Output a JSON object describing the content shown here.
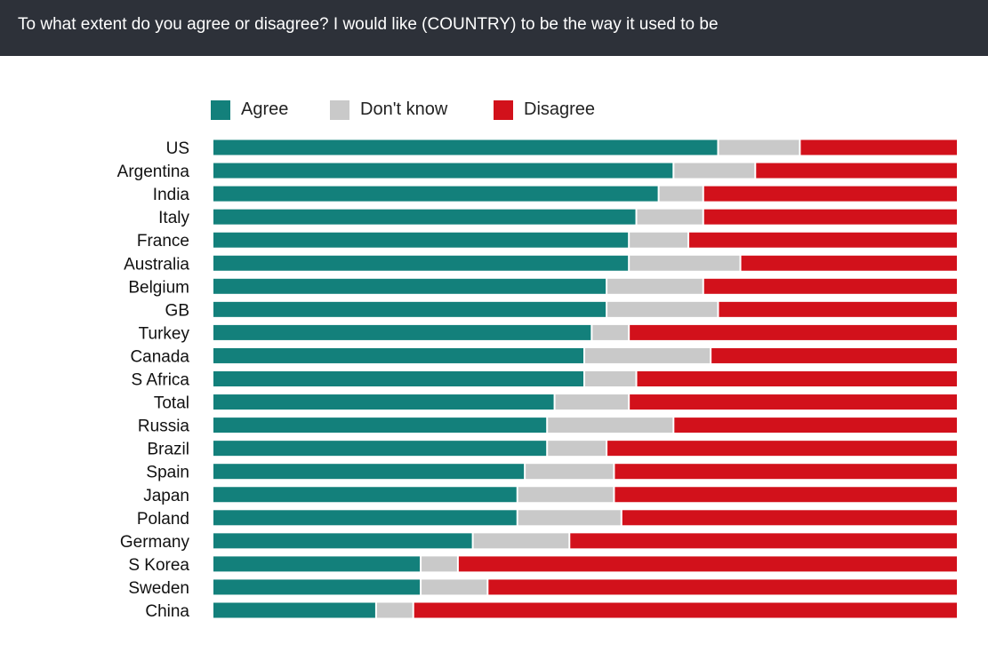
{
  "title": "To what extent do you agree or disagree? I would like (COUNTRY) to be the way it used to be",
  "chart_data": {
    "type": "bar",
    "orientation": "horizontal",
    "stacked": true,
    "title": "To what extent do you agree or disagree? I would like (COUNTRY) to be the way it used to be",
    "xlabel": "",
    "ylabel": "",
    "xlim": [
      0,
      100
    ],
    "legend_position": "top",
    "categories": [
      "US",
      "Argentina",
      "India",
      "Italy",
      "France",
      "Australia",
      "Belgium",
      "GB",
      "Turkey",
      "Canada",
      "S Africa",
      "Total",
      "Russia",
      "Brazil",
      "Spain",
      "Japan",
      "Poland",
      "Germany",
      "S Korea",
      "Sweden",
      "China"
    ],
    "series": [
      {
        "name": "Agree",
        "color": "#13807b",
        "values": [
          68,
          62,
          60,
          57,
          56,
          56,
          53,
          53,
          51,
          50,
          50,
          46,
          45,
          45,
          42,
          41,
          41,
          35,
          28,
          28,
          22
        ]
      },
      {
        "name": "Don't know",
        "color": "#c9c9c9",
        "values": [
          11,
          11,
          6,
          9,
          8,
          15,
          13,
          15,
          5,
          17,
          7,
          10,
          17,
          8,
          12,
          13,
          14,
          13,
          5,
          9,
          5
        ]
      },
      {
        "name": "Disagree",
        "color": "#d2111b",
        "values": [
          21,
          27,
          34,
          34,
          36,
          29,
          34,
          32,
          44,
          33,
          43,
          44,
          38,
          47,
          46,
          46,
          45,
          52,
          67,
          63,
          73
        ]
      }
    ]
  }
}
